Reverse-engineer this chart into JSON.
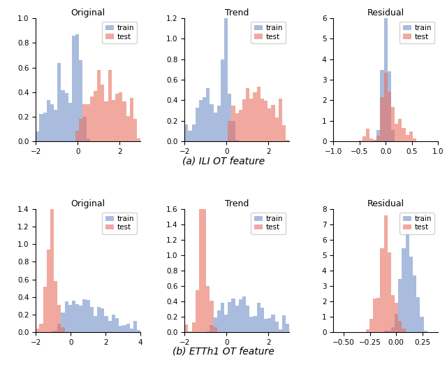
{
  "train_color": "#7090C8",
  "test_color": "#E87060",
  "alpha": 0.6,
  "bins": 30,
  "col_titles": [
    "Original",
    "Trend",
    "Residual"
  ],
  "figsize": [
    6.4,
    5.22
  ],
  "title_fontsize": 9,
  "label_fontsize": 7.5,
  "legend_fontsize": 7.5,
  "row_labels": [
    "(a) ILI OT feature",
    "(b) ETTh1 OT feature"
  ],
  "ili_orig_xlim": [
    -2,
    3
  ],
  "ili_trend_xlim": [
    -2,
    3
  ],
  "ili_resid_xlim": [
    -1.0,
    1.0
  ],
  "ili_orig_ylim": [
    0,
    1.0
  ],
  "ili_trend_ylim": [
    0,
    1.2
  ],
  "ili_resid_ylim": [
    0,
    6
  ],
  "etth_orig_xlim": [
    -2,
    4
  ],
  "etth_trend_xlim": [
    -2,
    3
  ],
  "etth_resid_xlim": [
    -0.6,
    0.4
  ],
  "etth_orig_ylim": [
    0,
    1.4
  ],
  "etth_trend_ylim": [
    0,
    1.6
  ],
  "etth_resid_ylim": [
    0,
    8
  ]
}
